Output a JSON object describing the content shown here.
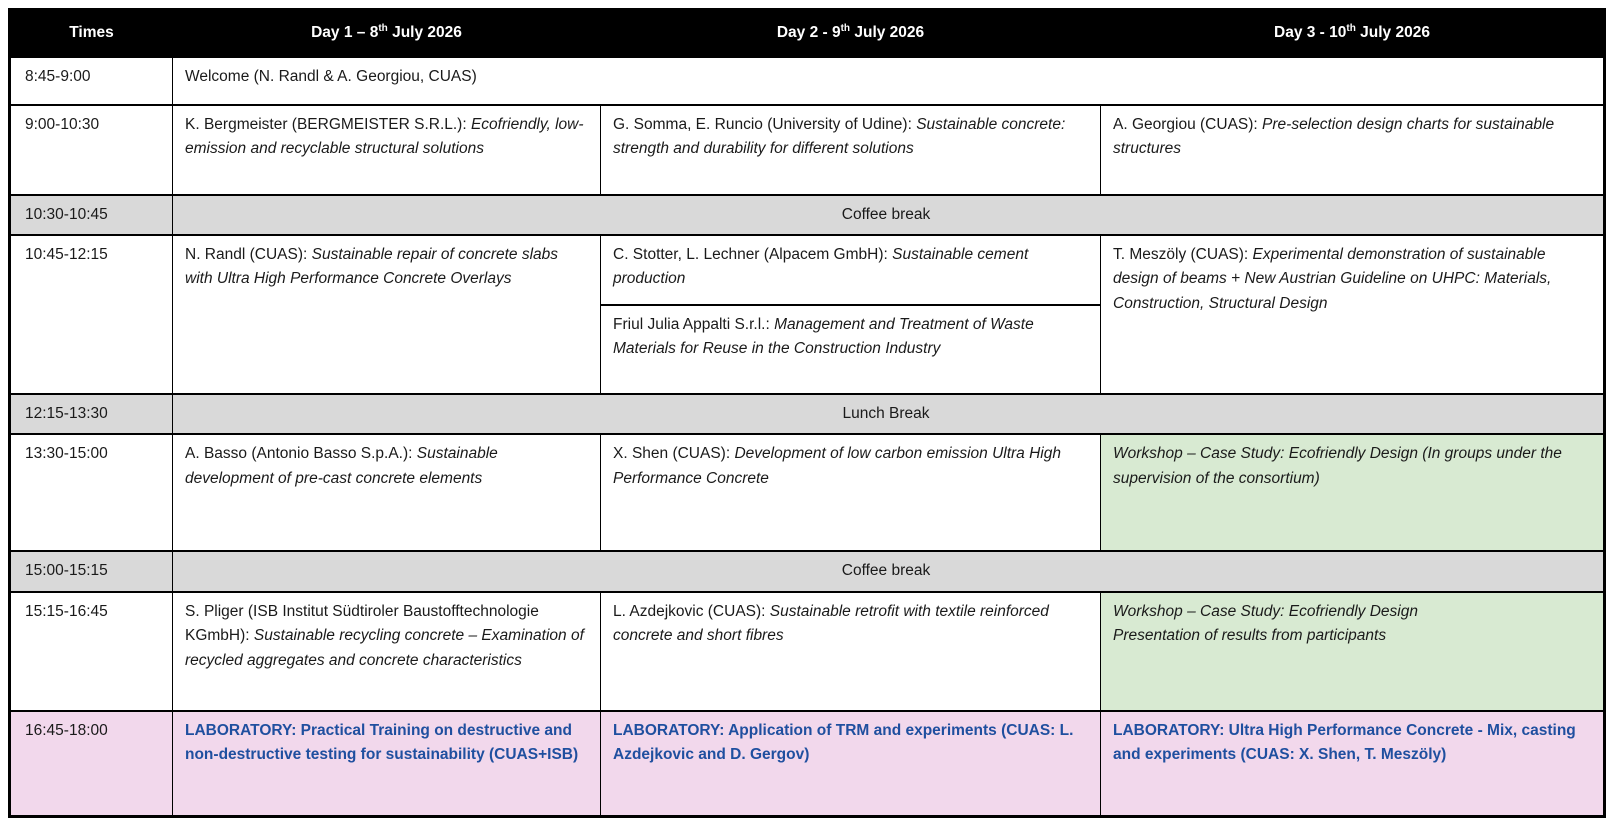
{
  "colors": {
    "header_bg": "#000000",
    "header_text": "#ffffff",
    "break_bg": "#d9d9d9",
    "workshop_bg": "#d8ead2",
    "laboratory_bg": "#f2d8ec",
    "laboratory_text": "#1f4f9f",
    "body_text": "#1a1a1a",
    "border": "#000000"
  },
  "header": {
    "times": "Times",
    "day1": {
      "pre": "Day 1 – 8",
      "sup": "th",
      "post": " July 2026"
    },
    "day2": {
      "pre": "Day 2 - 9",
      "sup": "th",
      "post": " July 2026"
    },
    "day3": {
      "pre": "Day 3 - 10",
      "sup": "th",
      "post": " July 2026"
    }
  },
  "rows": {
    "welcome": {
      "time": "8:45-9:00",
      "text": "Welcome (N. Randl & A. Georgiou, CUAS)"
    },
    "morning1": {
      "time": "9:00-10:30",
      "day1": {
        "speaker": "K. Bergmeister (BERGMEISTER S.R.L.): ",
        "title": "Ecofriendly, low-emission and recyclable structural solutions"
      },
      "day2": {
        "speaker": "G. Somma, E. Runcio (University of Udine): ",
        "title": "Sustainable concrete: strength and durability for different solutions"
      },
      "day3": {
        "speaker": "A. Georgiou (CUAS): ",
        "title": "Pre-selection design charts for sustainable structures"
      }
    },
    "coffee1": {
      "time": "10:30-10:45",
      "label": "Coffee break"
    },
    "morning2": {
      "time": "10:45-12:15",
      "day1": {
        "speaker": "N. Randl (CUAS): ",
        "title": "Sustainable repair of concrete slabs with Ultra High Performance Concrete Overlays"
      },
      "day2a": {
        "speaker": "C. Stotter, L. Lechner (Alpacem GmbH): ",
        "title": "Sustainable cement production"
      },
      "day2b": {
        "speaker": "Friul Julia Appalti S.r.l.: ",
        "title": "Management and Treatment of Waste Materials for Reuse in the Construction Industry"
      },
      "day3": {
        "speaker": "T. Meszöly (CUAS): ",
        "title": "Experimental demonstration of sustainable design of beams + New Austrian Guideline on UHPC:  Materials, Construction, Structural Design"
      }
    },
    "lunch": {
      "time": "12:15-13:30",
      "label": "Lunch Break"
    },
    "afternoon1": {
      "time": "13:30-15:00",
      "day1": {
        "speaker": "A. Basso (Antonio Basso S.p.A.): ",
        "title": "Sustainable development of pre-cast concrete elements"
      },
      "day2": {
        "speaker": "X. Shen (CUAS): ",
        "title": "Development of low carbon emission Ultra High Performance Concrete"
      },
      "day3": {
        "workshop": "Workshop – Case Study: Ecofriendly Design (In groups under the supervision of the consortium)"
      }
    },
    "coffee2": {
      "time": "15:00-15:15",
      "label": "Coffee break"
    },
    "afternoon2": {
      "time": "15:15-16:45",
      "day1": {
        "speaker": "S. Pliger (ISB Institut Südtiroler Baustofftechnologie KGmbH):  ",
        "title": "Sustainable recycling concrete – Examination of recycled aggregates and concrete characteristics"
      },
      "day2": {
        "speaker": "L. Azdejkovic (CUAS): ",
        "title": "Sustainable retrofit with textile reinforced concrete and short fibres"
      },
      "day3": {
        "workshop_line1": "Workshop – Case Study: Ecofriendly Design",
        "workshop_line2": "Presentation of results from participants"
      }
    },
    "laboratory": {
      "time": "16:45-18:00",
      "day1": "LABORATORY: Practical Training on destructive and non-destructive testing for sustainability (CUAS+ISB)",
      "day2": "LABORATORY: Application of TRM and experiments (CUAS: L. Azdejkovic and D. Gergov)",
      "day3": "LABORATORY: Ultra High Performance Concrete - Mix, casting and experiments (CUAS: X. Shen, T. Meszöly)"
    }
  }
}
